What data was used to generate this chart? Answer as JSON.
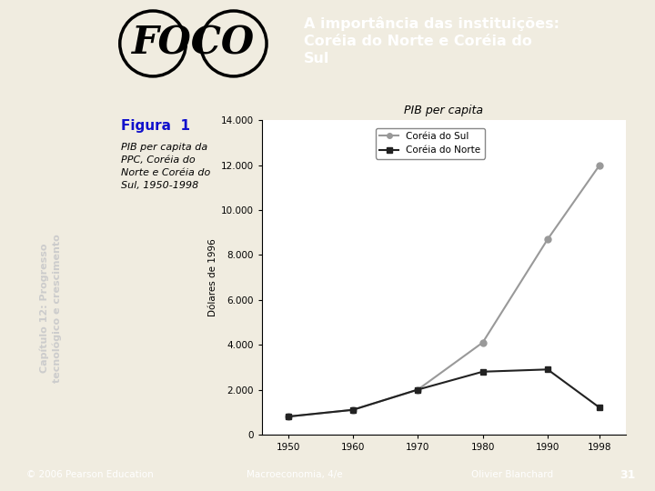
{
  "years": [
    1950,
    1960,
    1970,
    1980,
    1990,
    1998
  ],
  "south_korea": [
    800,
    1100,
    2000,
    4100,
    8700,
    12000
  ],
  "north_korea": [
    800,
    1100,
    2000,
    2800,
    2900,
    1200
  ],
  "chart_title": "PIB per capita",
  "ylabel": "Dólares de 1996",
  "legend_south": "Coréia do Sul",
  "legend_north": "Coréia do Norte",
  "south_color": "#999999",
  "north_color": "#222222",
  "ylim": [
    0,
    14000
  ],
  "yticks": [
    0,
    2000,
    4000,
    6000,
    8000,
    10000,
    12000,
    14000
  ],
  "xticks": [
    1950,
    1960,
    1970,
    1980,
    1990,
    1998
  ],
  "header_title": "A importância das instituições:\nCoréia do Norte e Coréia do\nSul",
  "header_bg": "#7b9fd4",
  "slide_bg": "#f0ece0",
  "left_bar_color_top": "#c8ab6e",
  "left_bar_color_bottom": "#c8b898",
  "figura_label": "Figura  1",
  "figura_text": "PIB per capita da\nPPC, Coréia do\nNorte e Coréia do\nSul, 1950-1998",
  "footer_left": "© 2006 Pearson Education",
  "footer_center": "Macroeconomia, 4/e",
  "footer_right": "Olivier Blanchard",
  "footer_page": "31",
  "cap_text": "Capítulo 12: Progresso\ntecnológico e crescimento",
  "foco_bg": "#ffffff",
  "chart_bg": "#ffffff",
  "figura_box_bg": "#d0ddf0",
  "footer_bg": "#4466aa",
  "header_right_bg": "#8899cc",
  "tan_header": "#c8ab6e"
}
